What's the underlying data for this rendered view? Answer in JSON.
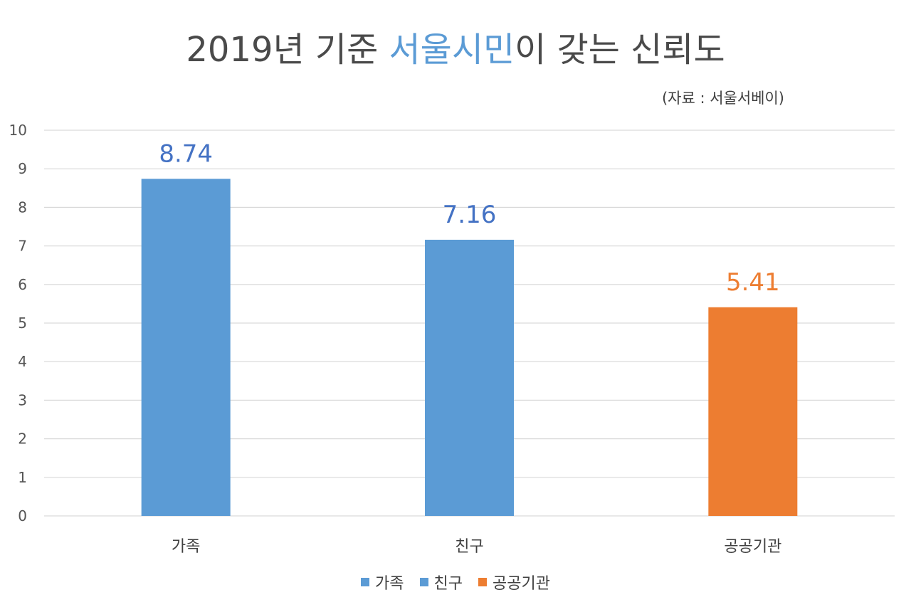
{
  "title": {
    "part1": "2019년 기준 ",
    "highlight": "서울시민",
    "part2": "이 갖는 신뢰도",
    "highlight_color": "#5b9bd5"
  },
  "source": "(자료 : 서울서베이)",
  "colors": {
    "blue": "#5b9bd5",
    "orange": "#ed7d31",
    "label_blue": "#4472c4",
    "gridline": "#d9d9d9"
  },
  "chart_data": {
    "type": "bar",
    "title": "2019년 기준 서울시민이 갖는 신뢰도",
    "categories": [
      "가족",
      "친구",
      "공공기관"
    ],
    "values": [
      8.74,
      7.16,
      5.41
    ],
    "data_labels": [
      "8.74",
      "7.16",
      "5.41"
    ],
    "bar_colors": [
      "#5b9bd5",
      "#5b9bd5",
      "#ed7d31"
    ],
    "label_colors": [
      "#4472c4",
      "#4472c4",
      "#ed7d31"
    ],
    "ylim": [
      0,
      10
    ],
    "yticks": [
      0,
      1,
      2,
      3,
      4,
      5,
      6,
      7,
      8,
      9,
      10
    ],
    "grid": true,
    "legend": {
      "position": "bottom",
      "entries": [
        {
          "label": "가족",
          "color": "#5b9bd5"
        },
        {
          "label": "친구",
          "color": "#5b9bd5"
        },
        {
          "label": "공공기관",
          "color": "#ed7d31"
        }
      ]
    }
  }
}
